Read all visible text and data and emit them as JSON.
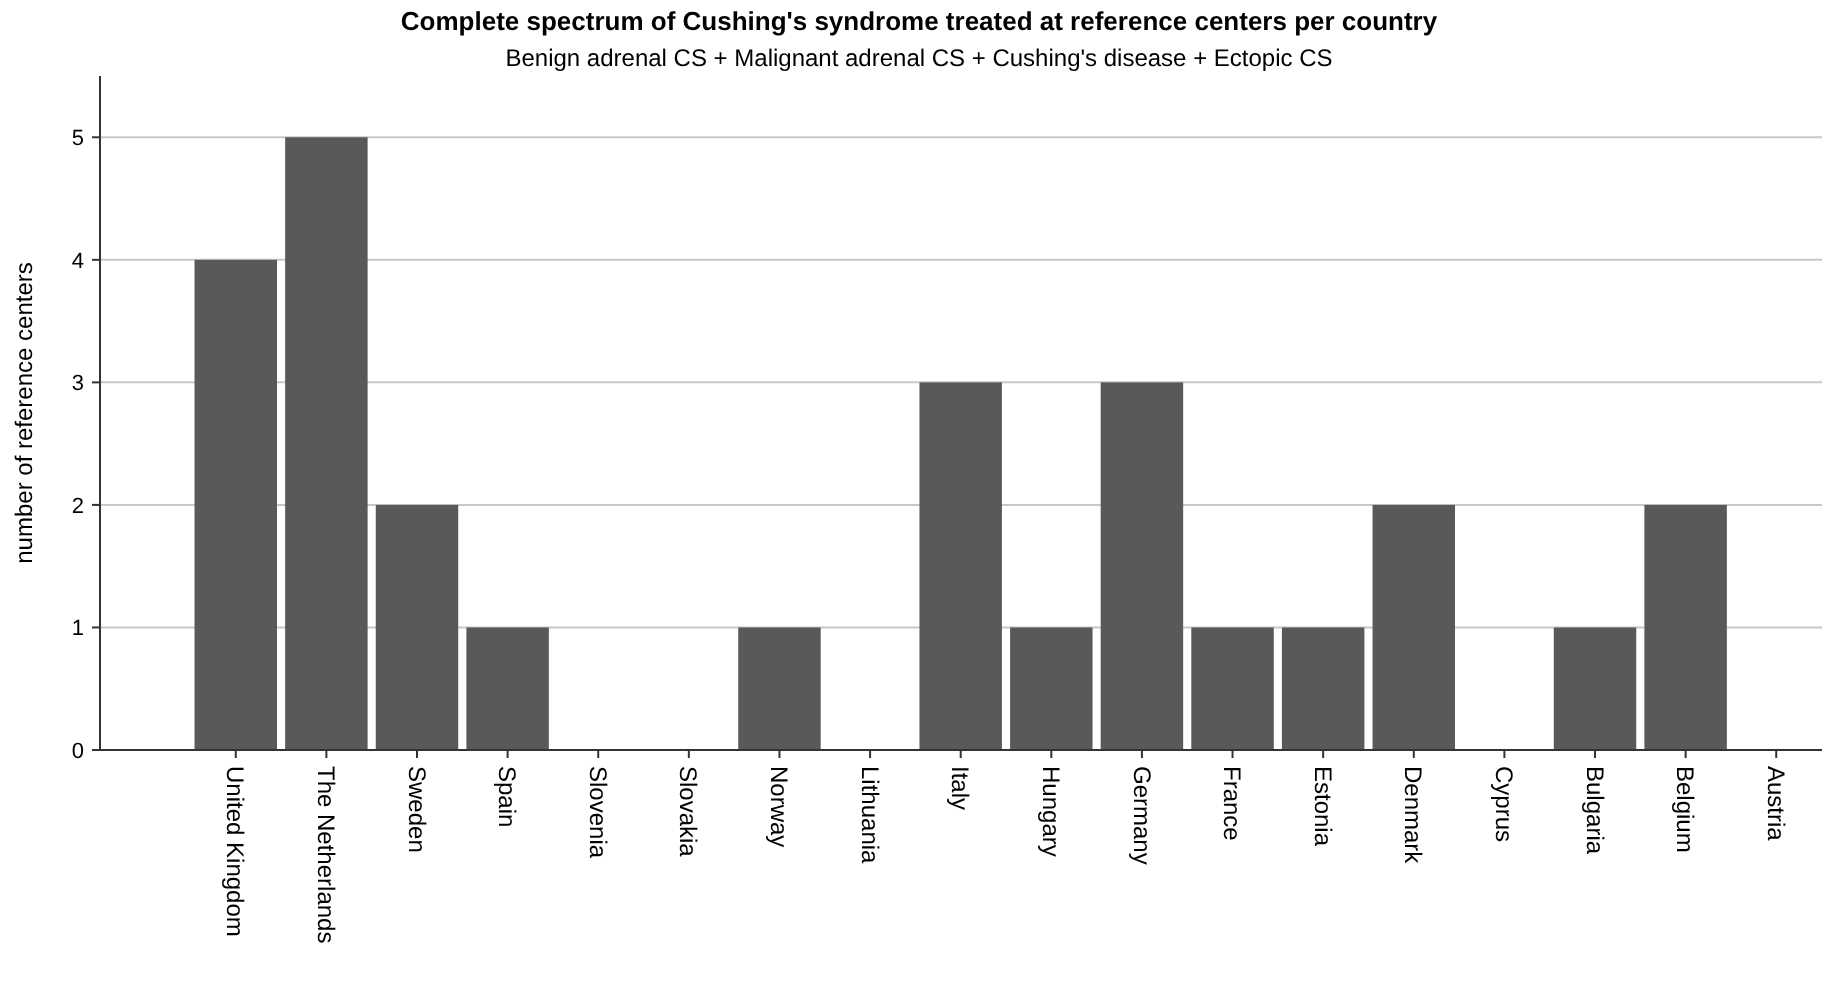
{
  "chart_data": {
    "type": "bar",
    "title": "Complete spectrum of Cushing's syndrome treated at reference centers per country",
    "subtitle": "Benign adrenal CS + Malignant adrenal CS + Cushing's disease + Ectopic CS",
    "ylabel": "number of reference centers",
    "categories": [
      "United Kingdom",
      "The Netherlands",
      "Sweden",
      "Spain",
      "Slovenia",
      "Slovakia",
      "Norway",
      "Lithuania",
      "Italy",
      "Hungary",
      "Germany",
      "France",
      "Estonia",
      "Denmark",
      "Cyprus",
      "Bulgaria",
      "Belgium",
      "Austria"
    ],
    "values": [
      4,
      5,
      2,
      1,
      0,
      0,
      1,
      0,
      3,
      1,
      3,
      1,
      1,
      2,
      0,
      1,
      2,
      0
    ],
    "color": "#595959",
    "ylim": [
      0,
      5.5
    ],
    "yticks": [
      0,
      1,
      2,
      3,
      4,
      5
    ],
    "grid": "y"
  }
}
